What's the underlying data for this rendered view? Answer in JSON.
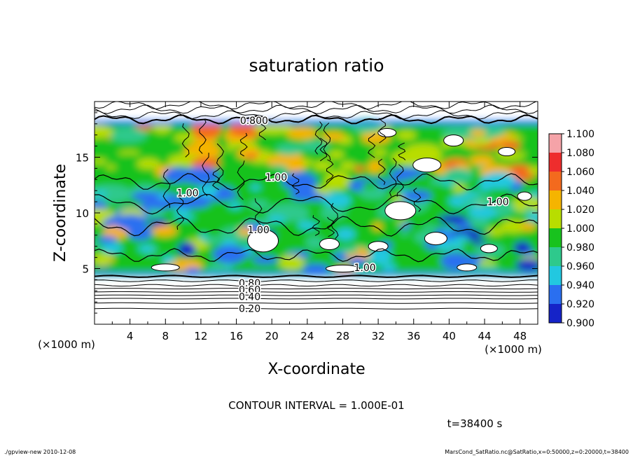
{
  "chart_data": {
    "type": "heatmap",
    "title": "saturation ratio",
    "xlabel": "X-coordinate",
    "ylabel": "Z-coordinate",
    "x_unit": "(×1000 m)",
    "y_unit": "(×1000 m)",
    "xlim": [
      0,
      50
    ],
    "ylim": [
      0,
      20
    ],
    "xticks": [
      4,
      8,
      12,
      16,
      20,
      24,
      28,
      32,
      36,
      40,
      44,
      48
    ],
    "yticks": [
      5,
      10,
      15
    ],
    "colorbar": {
      "levels": [
        "1.100",
        "1.080",
        "1.060",
        "1.040",
        "1.020",
        "1.000",
        "0.980",
        "0.960",
        "0.940",
        "0.920",
        "0.900"
      ],
      "colors": [
        "#f5a3a8",
        "#ee2d2d",
        "#f36a1e",
        "#f5b400",
        "#b8dd00",
        "#18c21e",
        "#2ec98c",
        "#22c8e0",
        "#2a6ff0",
        "#1523c8",
        "#6a1faa"
      ]
    },
    "contour_labels": [
      {
        "text": "0.800",
        "x": 18.0,
        "y": 18.3
      },
      {
        "text": "1.00",
        "x": 20.5,
        "y": 13.2
      },
      {
        "text": "1.00",
        "x": 10.5,
        "y": 11.8
      },
      {
        "text": "1.00",
        "x": 45.5,
        "y": 11.0
      },
      {
        "text": "1.00",
        "x": 18.5,
        "y": 8.5
      },
      {
        "text": "1.00",
        "x": 30.5,
        "y": 5.1
      },
      {
        "text": "0.80",
        "x": 17.5,
        "y": 3.7
      },
      {
        "text": "0.60",
        "x": 17.5,
        "y": 3.1
      },
      {
        "text": "0.40",
        "x": 17.5,
        "y": 2.5
      },
      {
        "text": "0.20",
        "x": 17.5,
        "y": 1.4
      }
    ],
    "contour_interval_text": "CONTOUR INTERVAL = 1.000E-01",
    "time_text": "t=38400 s"
  },
  "footer": {
    "left": "./gpview-new   2010-12-08",
    "right": "MarsCond_SatRatio.nc@SatRatio,x=0:50000,z=0:20000,t=38400"
  }
}
